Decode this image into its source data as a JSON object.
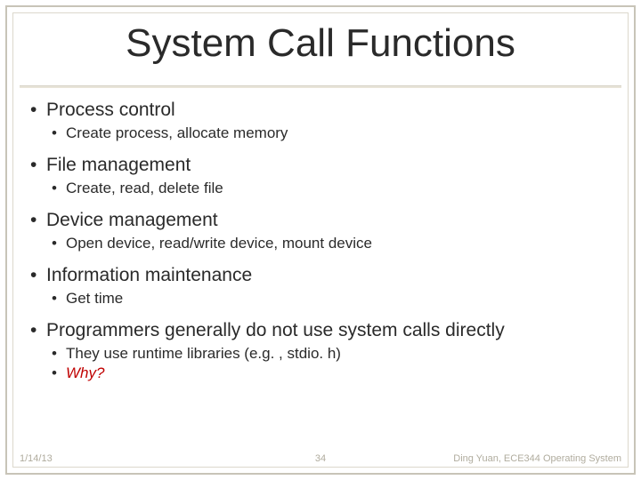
{
  "title": "System Call Functions",
  "title_fontsize": 44,
  "colors": {
    "text": "#2a2a2a",
    "border_outer": "#c8c4b8",
    "border_inner": "#dcd8cc",
    "underline": "#d8d4c8",
    "footer_text": "#b0ac9e",
    "why_color": "#c00000",
    "background": "#ffffff"
  },
  "bullets": {
    "b1": "Process control",
    "b1a": "Create process, allocate memory",
    "b2": "File management",
    "b2a": "Create, read, delete file",
    "b3": "Device management",
    "b3a": "Open device, read/write device, mount device",
    "b4": "Information maintenance",
    "b4a": "Get time",
    "b5": "Programmers generally do not use system calls directly",
    "b5a": "They use runtime libraries (e.g. , stdio. h)",
    "b5b": "Why?"
  },
  "footer": {
    "date": "1/14/13",
    "page": "34",
    "author": "Ding Yuan, ECE344 Operating System"
  },
  "typography": {
    "l1_fontsize": 21,
    "l2_fontsize": 17,
    "footer_fontsize": 11,
    "font_family": "Arial"
  }
}
